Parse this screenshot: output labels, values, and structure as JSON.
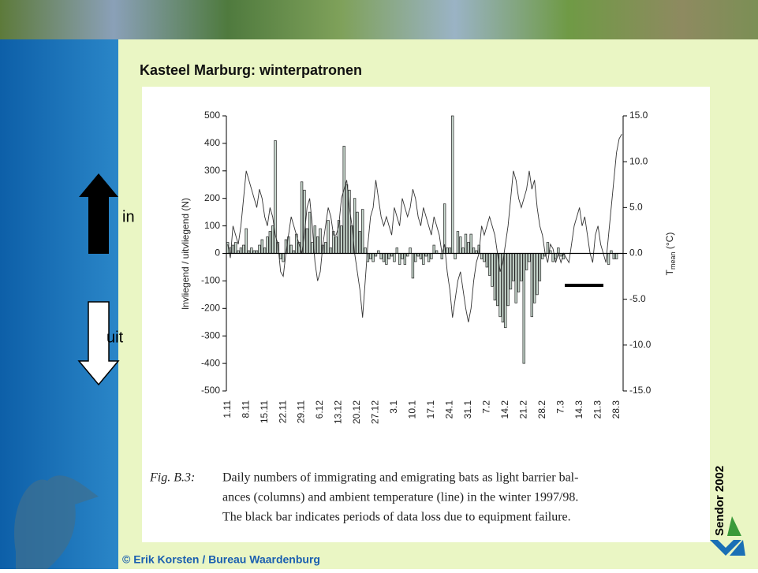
{
  "slide": {
    "title": "Kasteel Marburg: winterpatronen",
    "arrow_in": "in",
    "arrow_out": "uit",
    "side_note": "Sendor 2002",
    "footer": "© Erik Korsten / Bureau Waardenburg"
  },
  "chart_data": {
    "type": "bar",
    "ylabel": "Invliegend / uitvliegend (N)",
    "y2label_parts": [
      "T",
      "mean",
      " (°C)"
    ],
    "categories": [
      "1.11",
      null,
      null,
      null,
      null,
      null,
      null,
      "8.11",
      null,
      null,
      null,
      null,
      null,
      null,
      "15.11",
      null,
      null,
      null,
      null,
      null,
      null,
      "22.11",
      null,
      null,
      null,
      null,
      null,
      null,
      "29.11",
      null,
      null,
      null,
      null,
      null,
      null,
      "6.12",
      null,
      null,
      null,
      null,
      null,
      null,
      "13.12",
      null,
      null,
      null,
      null,
      null,
      null,
      "20.12",
      null,
      null,
      null,
      null,
      null,
      null,
      "27.12",
      null,
      null,
      null,
      null,
      null,
      null,
      "3.1",
      null,
      null,
      null,
      null,
      null,
      null,
      "10.1",
      null,
      null,
      null,
      null,
      null,
      null,
      "17.1",
      null,
      null,
      null,
      null,
      null,
      null,
      "24.1",
      null,
      null,
      null,
      null,
      null,
      null,
      "31.1",
      null,
      null,
      null,
      null,
      null,
      null,
      "7.2",
      null,
      null,
      null,
      null,
      null,
      null,
      "14.2",
      null,
      null,
      null,
      null,
      null,
      null,
      "21.2",
      null,
      null,
      null,
      null,
      null,
      null,
      "28.2",
      null,
      null,
      null,
      null,
      null,
      null,
      "7.3",
      null,
      null,
      null,
      null,
      null,
      null,
      "14.3",
      null,
      null,
      null,
      null,
      null,
      null,
      "21.3",
      null,
      null,
      null,
      null,
      null,
      null,
      "28.3",
      null,
      null
    ],
    "series": [
      {
        "type": "bar",
        "color": "#c9d9cf",
        "values": [
          40,
          20,
          30,
          40,
          10,
          20,
          30,
          90,
          10,
          20,
          10,
          10,
          30,
          50,
          20,
          60,
          80,
          100,
          410,
          40,
          -20,
          -30,
          50,
          60,
          30,
          10,
          70,
          40,
          260,
          230,
          90,
          150,
          40,
          100,
          60,
          90,
          30,
          40,
          120,
          20,
          80,
          60,
          120,
          100,
          390,
          250,
          230,
          100,
          200,
          150,
          80,
          160,
          20,
          -30,
          -20,
          -30,
          -10,
          10,
          -20,
          -30,
          -40,
          -20,
          -10,
          -30,
          20,
          -40,
          -20,
          -40,
          -10,
          20,
          -90,
          -30,
          -10,
          -20,
          -40,
          -10,
          -30,
          -20,
          30,
          10,
          0,
          -20,
          180,
          20,
          20,
          500,
          -20,
          80,
          60,
          20,
          70,
          40,
          70,
          20,
          10,
          30,
          -20,
          -30,
          -50,
          -80,
          -120,
          -170,
          -190,
          -230,
          -250,
          -270,
          -190,
          -130,
          -100,
          -180,
          -140,
          -100,
          -400,
          -60,
          -30,
          -230,
          -180,
          -150,
          -100,
          -20,
          -10,
          40,
          10,
          -30,
          -20,
          20,
          -10,
          -20,
          0,
          null,
          null,
          null,
          null,
          null,
          null,
          null,
          null,
          null,
          null,
          null,
          null,
          null,
          null,
          0,
          -40,
          10,
          -20,
          -20,
          0,
          0
        ]
      },
      {
        "type": "line",
        "axis": "y2",
        "color": "#333333",
        "values": [
          1,
          -0.5,
          3,
          2,
          1,
          3,
          6,
          9,
          8,
          7,
          6,
          5,
          7,
          6,
          4,
          3,
          5,
          4,
          2,
          1,
          -2,
          -2.5,
          0,
          2,
          4,
          3,
          2,
          1,
          0,
          2,
          5,
          6,
          3,
          -1,
          -3,
          -2,
          1,
          3,
          5,
          4,
          2,
          2,
          3,
          6,
          7,
          8,
          5,
          3,
          0,
          -2,
          -4,
          -7,
          -3,
          1,
          4,
          5,
          8,
          6,
          4,
          3,
          4,
          3,
          2,
          5,
          4,
          3,
          6,
          5,
          4,
          5,
          7,
          6,
          4,
          3,
          5,
          4,
          3,
          2,
          4,
          3,
          2,
          0,
          1,
          -2,
          -4,
          -7,
          -5,
          -3,
          -2,
          -4,
          -6,
          -7.5,
          -6,
          -3,
          -1,
          0,
          3,
          2,
          3,
          4,
          3,
          2,
          0,
          -2,
          -1,
          1,
          3,
          6,
          9,
          8,
          6,
          5,
          6,
          7,
          9,
          7,
          8,
          5,
          3,
          2,
          0,
          -1,
          1,
          0.5,
          -1,
          0,
          -1,
          0,
          -0.5,
          -1,
          1,
          3,
          4,
          5,
          3,
          4,
          2,
          0,
          -1,
          2,
          3,
          1,
          0,
          -1,
          2,
          5,
          8,
          11,
          12.5,
          13
        ]
      }
    ],
    "ylim": [
      -500,
      500
    ],
    "yticks": [
      -500,
      -400,
      -300,
      -200,
      -100,
      0,
      100,
      200,
      300,
      400,
      500
    ],
    "y2lim": [
      -15,
      15
    ],
    "y2ticks": [
      {
        "value": -15,
        "label": "-15.0"
      },
      {
        "value": -10,
        "label": "-10.0"
      },
      {
        "value": -5,
        "label": "-5.0"
      },
      {
        "value": 0,
        "label": "0.0"
      },
      {
        "value": 5,
        "label": "5.0"
      },
      {
        "value": 10,
        "label": "10.0"
      },
      {
        "value": 15,
        "label": "15.0"
      }
    ],
    "caption": {
      "label": "Fig. B.3:",
      "lines": [
        "Daily numbers of immigrating and emigrating bats as light barrier bal-",
        "ances (columns) and ambient temperature (line) in the winter 1997/98.",
        "The black bar indicates periods of data loss due to equipment failure."
      ]
    }
  }
}
